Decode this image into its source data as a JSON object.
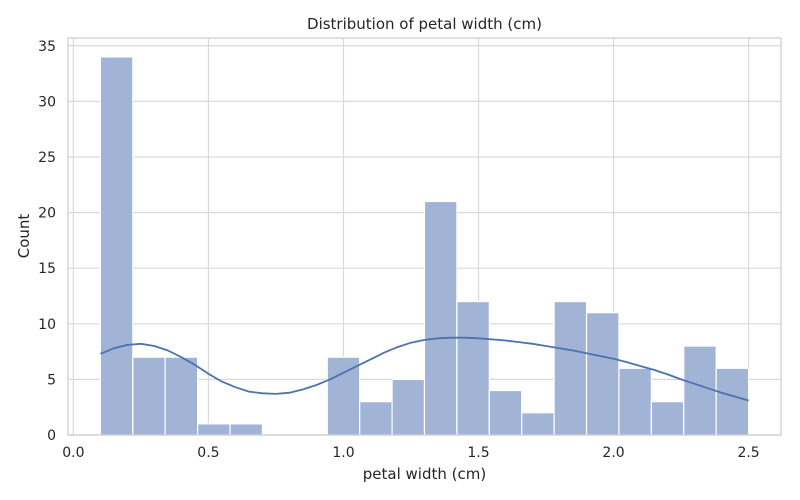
{
  "chart_data": {
    "type": "bar",
    "title": "Distribution of petal width (cm)",
    "xlabel": "petal width (cm)",
    "ylabel": "Count",
    "xlim": [
      -0.02,
      2.62
    ],
    "ylim": [
      0,
      35.7
    ],
    "xticks": [
      0.0,
      0.5,
      1.0,
      1.5,
      2.0,
      2.5
    ],
    "xtick_labels": [
      "0.0",
      "0.5",
      "1.0",
      "1.5",
      "2.0",
      "2.5"
    ],
    "yticks": [
      0,
      5,
      10,
      15,
      20,
      25,
      30,
      35
    ],
    "ytick_labels": [
      "0",
      "5",
      "10",
      "15",
      "20",
      "25",
      "30",
      "35"
    ],
    "grid": true,
    "bar_color": "#a1b4d6",
    "bar_edge_color": "#ffffff",
    "kde_color": "#4c72b0",
    "bins": [
      {
        "x0": 0.1,
        "x1": 0.22,
        "count": 34
      },
      {
        "x0": 0.22,
        "x1": 0.34,
        "count": 7
      },
      {
        "x0": 0.34,
        "x1": 0.46,
        "count": 7
      },
      {
        "x0": 0.46,
        "x1": 0.58,
        "count": 1
      },
      {
        "x0": 0.58,
        "x1": 0.7,
        "count": 1
      },
      {
        "x0": 0.7,
        "x1": 0.82,
        "count": 0
      },
      {
        "x0": 0.82,
        "x1": 0.94,
        "count": 0
      },
      {
        "x0": 0.94,
        "x1": 1.06,
        "count": 7
      },
      {
        "x0": 1.06,
        "x1": 1.18,
        "count": 3
      },
      {
        "x0": 1.18,
        "x1": 1.3,
        "count": 5
      },
      {
        "x0": 1.3,
        "x1": 1.42,
        "count": 21
      },
      {
        "x0": 1.42,
        "x1": 1.54,
        "count": 12
      },
      {
        "x0": 1.54,
        "x1": 1.66,
        "count": 4
      },
      {
        "x0": 1.66,
        "x1": 1.78,
        "count": 2
      },
      {
        "x0": 1.78,
        "x1": 1.9,
        "count": 12
      },
      {
        "x0": 1.9,
        "x1": 2.02,
        "count": 11
      },
      {
        "x0": 2.02,
        "x1": 2.14,
        "count": 6
      },
      {
        "x0": 2.14,
        "x1": 2.26,
        "count": 3
      },
      {
        "x0": 2.26,
        "x1": 2.38,
        "count": 8
      },
      {
        "x0": 2.38,
        "x1": 2.5,
        "count": 6
      }
    ],
    "kde": {
      "x": [
        0.1,
        0.15,
        0.2,
        0.25,
        0.3,
        0.35,
        0.4,
        0.45,
        0.5,
        0.55,
        0.6,
        0.65,
        0.7,
        0.75,
        0.8,
        0.85,
        0.9,
        0.95,
        1.0,
        1.05,
        1.1,
        1.15,
        1.2,
        1.25,
        1.3,
        1.35,
        1.4,
        1.45,
        1.5,
        1.55,
        1.6,
        1.65,
        1.7,
        1.75,
        1.8,
        1.85,
        1.9,
        1.95,
        2.0,
        2.05,
        2.1,
        2.15,
        2.2,
        2.25,
        2.3,
        2.35,
        2.4,
        2.45,
        2.5
      ],
      "y": [
        7.3,
        7.8,
        8.1,
        8.2,
        8.0,
        7.6,
        7.0,
        6.3,
        5.5,
        4.8,
        4.3,
        3.9,
        3.75,
        3.7,
        3.8,
        4.1,
        4.5,
        5.0,
        5.6,
        6.2,
        6.8,
        7.4,
        7.9,
        8.3,
        8.55,
        8.7,
        8.75,
        8.75,
        8.7,
        8.6,
        8.5,
        8.35,
        8.2,
        8.0,
        7.8,
        7.6,
        7.35,
        7.1,
        6.85,
        6.55,
        6.2,
        5.85,
        5.45,
        5.0,
        4.6,
        4.2,
        3.8,
        3.45,
        3.1
      ]
    }
  }
}
